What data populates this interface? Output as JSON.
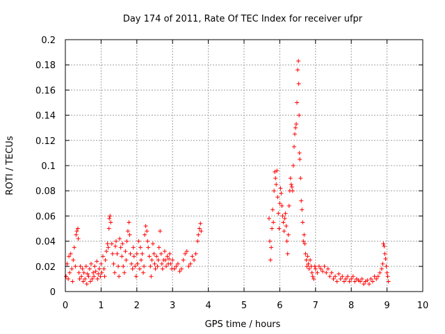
{
  "chart_data": {
    "type": "scatter",
    "title": "Day 174 of 2011, Rate Of TEC Index for receiver ufpr",
    "xlabel": "GPS time / hours",
    "ylabel": "ROTI / TECUs",
    "xlim": [
      0,
      10
    ],
    "ylim": [
      0,
      0.2
    ],
    "grid": true,
    "marker": "+",
    "color": "#ff0000",
    "x_ticks": [
      "0",
      "1",
      "2",
      "3",
      "4",
      "5",
      "6",
      "7",
      "8",
      "9",
      "10"
    ],
    "y_ticks": [
      "0",
      "0.02",
      "0.04",
      "0.06",
      "0.08",
      "0.1",
      "0.12",
      "0.14",
      "0.16",
      "0.18",
      "0.2"
    ],
    "series": [
      {
        "name": "ROTI",
        "points": [
          [
            0.02,
            0.012
          ],
          [
            0.05,
            0.022
          ],
          [
            0.08,
            0.01
          ],
          [
            0.1,
            0.028
          ],
          [
            0.12,
            0.015
          ],
          [
            0.15,
            0.03
          ],
          [
            0.18,
            0.018
          ],
          [
            0.2,
            0.008
          ],
          [
            0.22,
            0.025
          ],
          [
            0.25,
            0.035
          ],
          [
            0.28,
            0.02
          ],
          [
            0.3,
            0.045
          ],
          [
            0.32,
            0.048
          ],
          [
            0.35,
            0.05
          ],
          [
            0.36,
            0.042
          ],
          [
            0.38,
            0.015
          ],
          [
            0.4,
            0.01
          ],
          [
            0.42,
            0.02
          ],
          [
            0.45,
            0.012
          ],
          [
            0.48,
            0.018
          ],
          [
            0.5,
            0.008
          ],
          [
            0.52,
            0.015
          ],
          [
            0.55,
            0.01
          ],
          [
            0.58,
            0.02
          ],
          [
            0.6,
            0.006
          ],
          [
            0.62,
            0.014
          ],
          [
            0.65,
            0.012
          ],
          [
            0.68,
            0.018
          ],
          [
            0.7,
            0.008
          ],
          [
            0.72,
            0.022
          ],
          [
            0.75,
            0.01
          ],
          [
            0.78,
            0.015
          ],
          [
            0.8,
            0.012
          ],
          [
            0.82,
            0.02
          ],
          [
            0.85,
            0.016
          ],
          [
            0.88,
            0.024
          ],
          [
            0.9,
            0.01
          ],
          [
            0.92,
            0.014
          ],
          [
            0.95,
            0.018
          ],
          [
            0.98,
            0.012
          ],
          [
            1.0,
            0.022
          ],
          [
            1.02,
            0.015
          ],
          [
            1.05,
            0.028
          ],
          [
            1.08,
            0.018
          ],
          [
            1.1,
            0.012
          ],
          [
            1.12,
            0.025
          ],
          [
            1.15,
            0.032
          ],
          [
            1.18,
            0.038
          ],
          [
            1.2,
            0.035
          ],
          [
            1.22,
            0.05
          ],
          [
            1.23,
            0.058
          ],
          [
            1.25,
            0.06
          ],
          [
            1.27,
            0.055
          ],
          [
            1.3,
            0.038
          ],
          [
            1.32,
            0.03
          ],
          [
            1.35,
            0.022
          ],
          [
            1.38,
            0.015
          ],
          [
            1.4,
            0.036
          ],
          [
            1.42,
            0.04
          ],
          [
            1.45,
            0.03
          ],
          [
            1.48,
            0.02
          ],
          [
            1.5,
            0.012
          ],
          [
            1.52,
            0.042
          ],
          [
            1.55,
            0.035
          ],
          [
            1.58,
            0.028
          ],
          [
            1.6,
            0.038
          ],
          [
            1.62,
            0.02
          ],
          [
            1.65,
            0.015
          ],
          [
            1.68,
            0.032
          ],
          [
            1.7,
            0.025
          ],
          [
            1.72,
            0.04
          ],
          [
            1.75,
            0.048
          ],
          [
            1.78,
            0.055
          ],
          [
            1.8,
            0.045
          ],
          [
            1.82,
            0.03
          ],
          [
            1.85,
            0.022
          ],
          [
            1.88,
            0.018
          ],
          [
            1.9,
            0.035
          ],
          [
            1.92,
            0.028
          ],
          [
            1.95,
            0.02
          ],
          [
            1.98,
            0.012
          ],
          [
            2.0,
            0.03
          ],
          [
            2.02,
            0.022
          ],
          [
            2.05,
            0.04
          ],
          [
            2.08,
            0.018
          ],
          [
            2.1,
            0.035
          ],
          [
            2.12,
            0.025
          ],
          [
            2.15,
            0.03
          ],
          [
            2.18,
            0.015
          ],
          [
            2.2,
            0.02
          ],
          [
            2.22,
            0.045
          ],
          [
            2.25,
            0.052
          ],
          [
            2.28,
            0.048
          ],
          [
            2.3,
            0.04
          ],
          [
            2.32,
            0.035
          ],
          [
            2.35,
            0.028
          ],
          [
            2.38,
            0.02
          ],
          [
            2.4,
            0.012
          ],
          [
            2.42,
            0.025
          ],
          [
            2.45,
            0.038
          ],
          [
            2.48,
            0.03
          ],
          [
            2.5,
            0.022
          ],
          [
            2.52,
            0.018
          ],
          [
            2.55,
            0.028
          ],
          [
            2.58,
            0.02
          ],
          [
            2.6,
            0.025
          ],
          [
            2.62,
            0.035
          ],
          [
            2.65,
            0.048
          ],
          [
            2.68,
            0.03
          ],
          [
            2.7,
            0.022
          ],
          [
            2.72,
            0.018
          ],
          [
            2.75,
            0.025
          ],
          [
            2.78,
            0.032
          ],
          [
            2.8,
            0.025
          ],
          [
            2.82,
            0.02
          ],
          [
            2.85,
            0.028
          ],
          [
            2.88,
            0.022
          ],
          [
            2.9,
            0.026
          ],
          [
            2.92,
            0.03
          ],
          [
            2.95,
            0.022
          ],
          [
            2.98,
            0.018
          ],
          [
            3.0,
            0.025
          ],
          [
            3.05,
            0.018
          ],
          [
            3.1,
            0.02
          ],
          [
            3.15,
            0.022
          ],
          [
            3.2,
            0.016
          ],
          [
            3.25,
            0.018
          ],
          [
            3.3,
            0.025
          ],
          [
            3.35,
            0.03
          ],
          [
            3.4,
            0.032
          ],
          [
            3.45,
            0.02
          ],
          [
            3.5,
            0.022
          ],
          [
            3.55,
            0.028
          ],
          [
            3.6,
            0.025
          ],
          [
            3.65,
            0.03
          ],
          [
            3.7,
            0.04
          ],
          [
            3.72,
            0.045
          ],
          [
            3.75,
            0.05
          ],
          [
            3.78,
            0.054
          ],
          [
            3.8,
            0.048
          ],
          [
            5.7,
            0.058
          ],
          [
            5.72,
            0.04
          ],
          [
            5.74,
            0.025
          ],
          [
            5.76,
            0.035
          ],
          [
            5.78,
            0.05
          ],
          [
            5.8,
            0.065
          ],
          [
            5.82,
            0.055
          ],
          [
            5.84,
            0.08
          ],
          [
            5.86,
            0.095
          ],
          [
            5.88,
            0.09
          ],
          [
            5.9,
            0.085
          ],
          [
            5.92,
            0.096
          ],
          [
            5.94,
            0.075
          ],
          [
            5.96,
            0.062
          ],
          [
            5.98,
            0.05
          ],
          [
            6.0,
            0.07
          ],
          [
            6.02,
            0.082
          ],
          [
            6.04,
            0.078
          ],
          [
            6.06,
            0.068
          ],
          [
            6.08,
            0.06
          ],
          [
            6.1,
            0.055
          ],
          [
            6.12,
            0.048
          ],
          [
            6.14,
            0.058
          ],
          [
            6.16,
            0.062
          ],
          [
            6.18,
            0.052
          ],
          [
            6.2,
            0.04
          ],
          [
            6.22,
            0.03
          ],
          [
            6.24,
            0.045
          ],
          [
            6.26,
            0.068
          ],
          [
            6.28,
            0.08
          ],
          [
            6.3,
            0.09
          ],
          [
            6.32,
            0.085
          ],
          [
            6.34,
            0.083
          ],
          [
            6.36,
            0.08
          ],
          [
            6.38,
            0.1
          ],
          [
            6.4,
            0.115
          ],
          [
            6.42,
            0.125
          ],
          [
            6.44,
            0.13
          ],
          [
            6.46,
            0.133
          ],
          [
            6.48,
            0.15
          ],
          [
            6.5,
            0.176
          ],
          [
            6.52,
            0.183
          ],
          [
            6.53,
            0.165
          ],
          [
            6.54,
            0.14
          ],
          [
            6.55,
            0.11
          ],
          [
            6.56,
            0.105
          ],
          [
            6.58,
            0.09
          ],
          [
            6.6,
            0.072
          ],
          [
            6.62,
            0.065
          ],
          [
            6.64,
            0.055
          ],
          [
            6.66,
            0.04
          ],
          [
            6.68,
            0.045
          ],
          [
            6.7,
            0.038
          ],
          [
            6.72,
            0.03
          ],
          [
            6.74,
            0.025
          ],
          [
            6.76,
            0.02
          ],
          [
            6.78,
            0.028
          ],
          [
            6.8,
            0.022
          ],
          [
            6.82,
            0.018
          ],
          [
            6.85,
            0.025
          ],
          [
            6.88,
            0.02
          ],
          [
            6.9,
            0.015
          ],
          [
            6.92,
            0.012
          ],
          [
            6.95,
            0.01
          ],
          [
            6.98,
            0.02
          ],
          [
            7.0,
            0.018
          ],
          [
            7.05,
            0.015
          ],
          [
            7.1,
            0.02
          ],
          [
            7.15,
            0.018
          ],
          [
            7.2,
            0.016
          ],
          [
            7.25,
            0.02
          ],
          [
            7.3,
            0.015
          ],
          [
            7.35,
            0.018
          ],
          [
            7.4,
            0.012
          ],
          [
            7.45,
            0.015
          ],
          [
            7.5,
            0.01
          ],
          [
            7.55,
            0.012
          ],
          [
            7.6,
            0.008
          ],
          [
            7.65,
            0.014
          ],
          [
            7.7,
            0.01
          ],
          [
            7.75,
            0.012
          ],
          [
            7.8,
            0.008
          ],
          [
            7.85,
            0.01
          ],
          [
            7.9,
            0.012
          ],
          [
            7.95,
            0.008
          ],
          [
            8.0,
            0.01
          ],
          [
            8.05,
            0.012
          ],
          [
            8.1,
            0.008
          ],
          [
            8.15,
            0.01
          ],
          [
            8.2,
            0.009
          ],
          [
            8.25,
            0.008
          ],
          [
            8.3,
            0.01
          ],
          [
            8.35,
            0.006
          ],
          [
            8.4,
            0.008
          ],
          [
            8.45,
            0.009
          ],
          [
            8.5,
            0.006
          ],
          [
            8.55,
            0.01
          ],
          [
            8.6,
            0.008
          ],
          [
            8.65,
            0.012
          ],
          [
            8.7,
            0.01
          ],
          [
            8.75,
            0.012
          ],
          [
            8.8,
            0.015
          ],
          [
            8.85,
            0.018
          ],
          [
            8.88,
            0.022
          ],
          [
            8.9,
            0.038
          ],
          [
            8.92,
            0.036
          ],
          [
            8.94,
            0.03
          ],
          [
            8.96,
            0.026
          ],
          [
            8.98,
            0.02
          ],
          [
            9.0,
            0.015
          ],
          [
            9.02,
            0.012
          ],
          [
            9.04,
            0.008
          ]
        ]
      }
    ]
  }
}
